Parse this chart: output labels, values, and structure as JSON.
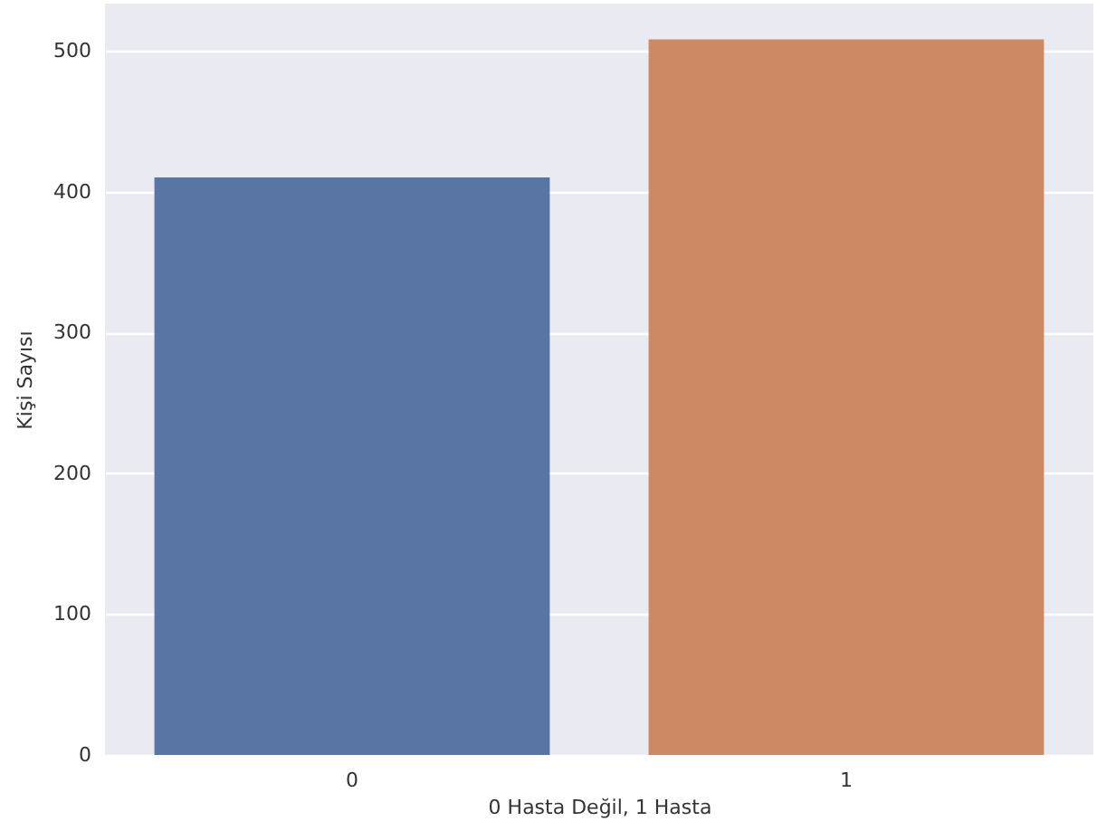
{
  "chart_data": {
    "type": "bar",
    "xlabel": "0 Hasta Değil, 1 Hasta",
    "ylabel": "Kişi Sayısı",
    "categories": [
      "0",
      "1"
    ],
    "values": [
      410,
      508
    ],
    "colors": [
      "#5875a4",
      "#cc8963"
    ],
    "ylim": [
      0,
      533.4
    ],
    "yticks": [
      0,
      100,
      200,
      300,
      400,
      500
    ],
    "grid": "y"
  }
}
